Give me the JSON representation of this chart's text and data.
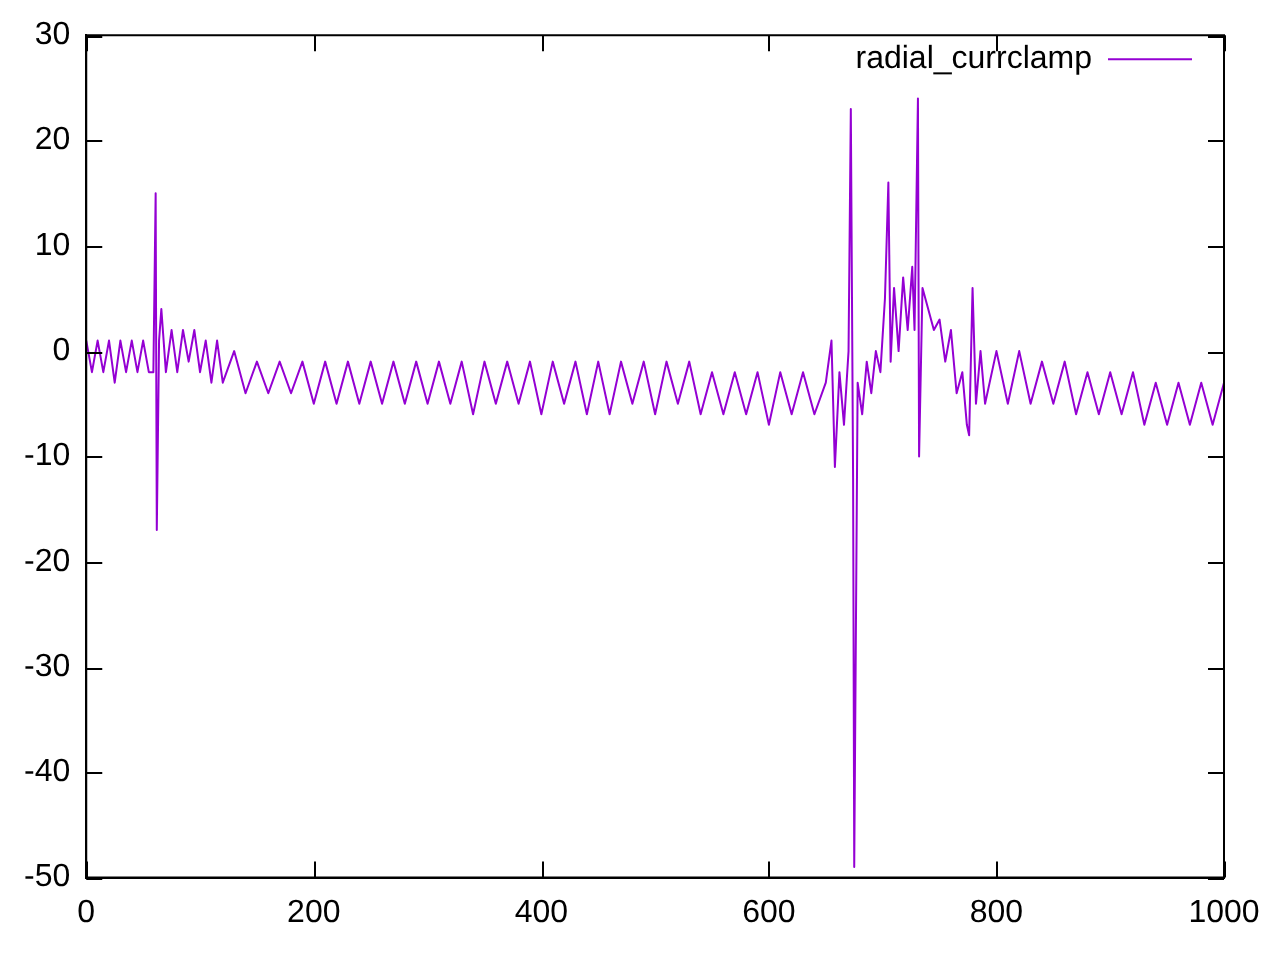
{
  "chart_data": {
    "type": "line",
    "xlim": [
      0,
      1000
    ],
    "ylim": [
      -50,
      30
    ],
    "xticks": [
      0,
      200,
      400,
      600,
      800,
      1000
    ],
    "yticks": [
      -50,
      -40,
      -30,
      -20,
      -10,
      0,
      10,
      20,
      30
    ],
    "grid": false,
    "legend": "top right",
    "marker": "none",
    "line_style": "solid",
    "series": [
      {
        "name": "radial_currclamp",
        "color": "#9400d3",
        "x": [
          0,
          5,
          10,
          15,
          20,
          25,
          30,
          35,
          40,
          45,
          50,
          55,
          59,
          61,
          62,
          64,
          66,
          70,
          75,
          80,
          85,
          90,
          95,
          100,
          105,
          110,
          115,
          120,
          130,
          140,
          150,
          160,
          170,
          180,
          190,
          200,
          210,
          220,
          230,
          240,
          250,
          260,
          270,
          280,
          290,
          300,
          310,
          320,
          330,
          340,
          350,
          360,
          370,
          380,
          390,
          400,
          410,
          420,
          430,
          440,
          450,
          460,
          470,
          480,
          490,
          500,
          510,
          520,
          530,
          540,
          550,
          560,
          570,
          580,
          590,
          600,
          610,
          620,
          630,
          640,
          650,
          655,
          658,
          662,
          666,
          670,
          672,
          674,
          675,
          678,
          682,
          686,
          690,
          694,
          698,
          702,
          705,
          707,
          710,
          714,
          718,
          722,
          726,
          728,
          731,
          732,
          735,
          740,
          745,
          750,
          755,
          760,
          765,
          770,
          774,
          776,
          779,
          782,
          786,
          790,
          800,
          810,
          820,
          830,
          840,
          850,
          860,
          870,
          880,
          890,
          900,
          910,
          920,
          930,
          940,
          950,
          960,
          970,
          980,
          990,
          1000
        ],
        "values": [
          1,
          -2,
          1,
          -2,
          1,
          -3,
          1,
          -2,
          1,
          -2,
          1,
          -2,
          -2,
          15,
          -17,
          1,
          4,
          -2,
          2,
          -2,
          2,
          -1,
          2,
          -2,
          1,
          -3,
          1,
          -3,
          0,
          -4,
          -1,
          -4,
          -1,
          -4,
          -1,
          -5,
          -1,
          -5,
          -1,
          -5,
          -1,
          -5,
          -1,
          -5,
          -1,
          -5,
          -1,
          -5,
          -1,
          -6,
          -1,
          -5,
          -1,
          -5,
          -1,
          -6,
          -1,
          -5,
          -1,
          -6,
          -1,
          -6,
          -1,
          -5,
          -1,
          -6,
          -1,
          -5,
          -1,
          -6,
          -2,
          -6,
          -2,
          -6,
          -2,
          -7,
          -2,
          -6,
          -2,
          -6,
          -3,
          1,
          -11,
          -2,
          -7,
          0,
          23,
          -12,
          -49,
          -3,
          -6,
          -1,
          -4,
          0,
          -2,
          5,
          16,
          -1,
          6,
          0,
          7,
          2,
          8,
          2,
          24,
          -10,
          6,
          4,
          2,
          3,
          -1,
          2,
          -4,
          -2,
          -7,
          -8,
          6,
          -5,
          0,
          -5,
          0,
          -5,
          0,
          -5,
          -1,
          -5,
          -1,
          -6,
          -2,
          -6,
          -2,
          -6,
          -2,
          -7,
          -3,
          -7,
          -3,
          -7,
          -3,
          -7,
          -3
        ]
      }
    ]
  }
}
